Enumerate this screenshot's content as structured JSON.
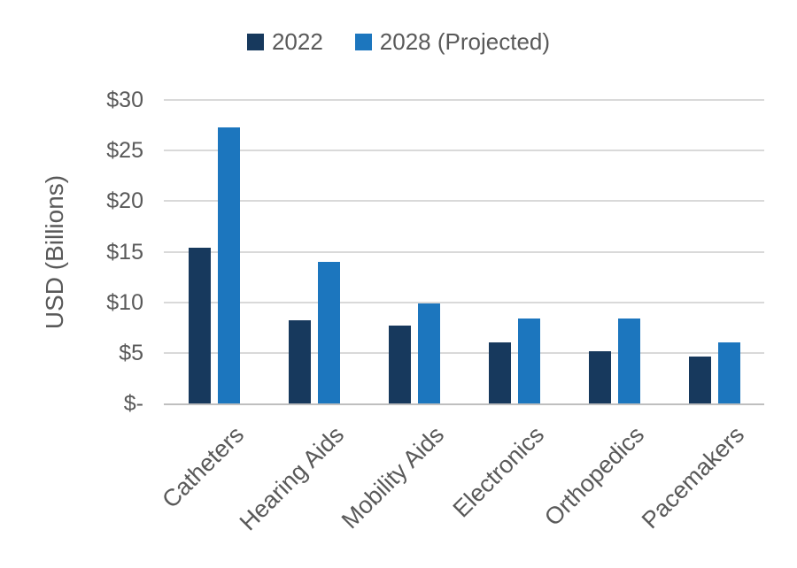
{
  "chart_data": {
    "type": "bar",
    "title": "",
    "categories": [
      "Catheters",
      "Hearing Aids",
      "Mobility Aids",
      "Electronics",
      "Orthopedics",
      "Pacemakers"
    ],
    "series": [
      {
        "name": "2022",
        "color": "#17395D",
        "values": [
          15.4,
          8.2,
          7.7,
          6.0,
          5.2,
          4.6
        ]
      },
      {
        "name": "2028 (Projected)",
        "color": "#1C76BE",
        "values": [
          27.3,
          14.0,
          9.9,
          8.4,
          8.4,
          6.0
        ]
      }
    ],
    "xlabel": "",
    "ylabel": "USD (Billions)",
    "ylim": [
      0,
      30
    ],
    "yticks": [
      {
        "label": "$-",
        "value": 0
      },
      {
        "label": "$5",
        "value": 5
      },
      {
        "label": "$10",
        "value": 10
      },
      {
        "label": "$15",
        "value": 15
      },
      {
        "label": "$20",
        "value": 20
      },
      {
        "label": "$25",
        "value": 25
      },
      {
        "label": "$30",
        "value": 30
      }
    ],
    "grid": true,
    "legend_position": "top",
    "colors": {
      "gridline": "#d9d9d9",
      "axis_line": "#bfbfbf",
      "text": "#595959",
      "background": "#ffffff"
    }
  }
}
